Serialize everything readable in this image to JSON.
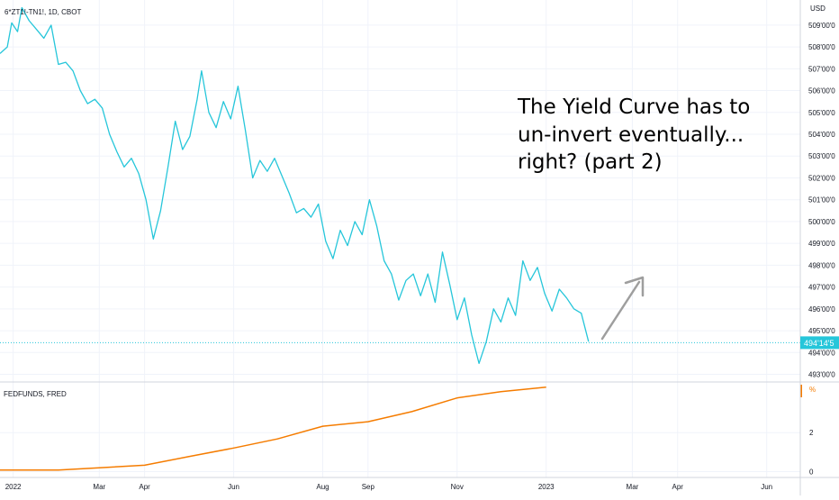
{
  "chart_data": [
    {
      "type": "line",
      "legend": "6*ZT1!-TN1!, 1D, CBOT",
      "currency": "USD",
      "color": "#26c6da",
      "ylim": [
        492.65,
        510.15
      ],
      "y_ticks": [
        "509'00'0",
        "508'00'0",
        "507'00'0",
        "506'00'0",
        "505'00'0",
        "504'00'0",
        "503'00'0",
        "502'00'0",
        "501'00'0",
        "500'00'0",
        "499'00'0",
        "498'00'0",
        "497'00'0",
        "496'00'0",
        "495'00'0",
        "494'00'0",
        "493'00'0"
      ],
      "y_tick_values": [
        509,
        508,
        507,
        506,
        505,
        504,
        503,
        502,
        501,
        500,
        499,
        498,
        497,
        496,
        495,
        494,
        493
      ],
      "last_price_label": "494'14'5",
      "last_price": 494.45,
      "x_start": "2021-12-23",
      "x_end": "2023-06-24",
      "points": [
        [
          "2021-12-23",
          507.7
        ],
        [
          "2021-12-28",
          508.0
        ],
        [
          "2021-12-31",
          509.1
        ],
        [
          "2022-01-04",
          508.7
        ],
        [
          "2022-01-07",
          509.8
        ],
        [
          "2022-01-12",
          509.2
        ],
        [
          "2022-01-17",
          508.8
        ],
        [
          "2022-01-22",
          508.4
        ],
        [
          "2022-01-27",
          509.0
        ],
        [
          "2022-02-01",
          507.2
        ],
        [
          "2022-02-06",
          507.3
        ],
        [
          "2022-02-11",
          506.9
        ],
        [
          "2022-02-16",
          506.0
        ],
        [
          "2022-02-21",
          505.4
        ],
        [
          "2022-02-26",
          505.6
        ],
        [
          "2022-03-03",
          505.2
        ],
        [
          "2022-03-08",
          504.0
        ],
        [
          "2022-03-13",
          503.2
        ],
        [
          "2022-03-18",
          502.5
        ],
        [
          "2022-03-23",
          502.9
        ],
        [
          "2022-03-28",
          502.2
        ],
        [
          "2022-04-02",
          501.0
        ],
        [
          "2022-04-07",
          499.2
        ],
        [
          "2022-04-12",
          500.5
        ],
        [
          "2022-04-17",
          502.5
        ],
        [
          "2022-04-22",
          504.6
        ],
        [
          "2022-04-27",
          503.3
        ],
        [
          "2022-05-02",
          503.9
        ],
        [
          "2022-05-07",
          505.6
        ],
        [
          "2022-05-10",
          506.9
        ],
        [
          "2022-05-15",
          505.0
        ],
        [
          "2022-05-20",
          504.3
        ],
        [
          "2022-05-25",
          505.5
        ],
        [
          "2022-05-30",
          504.7
        ],
        [
          "2022-06-04",
          506.2
        ],
        [
          "2022-06-09",
          504.2
        ],
        [
          "2022-06-14",
          502.0
        ],
        [
          "2022-06-19",
          502.8
        ],
        [
          "2022-06-24",
          502.3
        ],
        [
          "2022-06-29",
          502.9
        ],
        [
          "2022-07-04",
          502.1
        ],
        [
          "2022-07-09",
          501.3
        ],
        [
          "2022-07-14",
          500.4
        ],
        [
          "2022-07-19",
          500.6
        ],
        [
          "2022-07-24",
          500.2
        ],
        [
          "2022-07-29",
          500.8
        ],
        [
          "2022-08-03",
          499.1
        ],
        [
          "2022-08-08",
          498.3
        ],
        [
          "2022-08-13",
          499.6
        ],
        [
          "2022-08-18",
          498.9
        ],
        [
          "2022-08-23",
          500.0
        ],
        [
          "2022-08-28",
          499.4
        ],
        [
          "2022-09-02",
          501.0
        ],
        [
          "2022-09-07",
          499.8
        ],
        [
          "2022-09-12",
          498.2
        ],
        [
          "2022-09-17",
          497.6
        ],
        [
          "2022-09-22",
          496.4
        ],
        [
          "2022-09-27",
          497.3
        ],
        [
          "2022-10-02",
          497.6
        ],
        [
          "2022-10-07",
          496.6
        ],
        [
          "2022-10-12",
          497.6
        ],
        [
          "2022-10-17",
          496.3
        ],
        [
          "2022-10-22",
          498.6
        ],
        [
          "2022-10-27",
          497.1
        ],
        [
          "2022-11-01",
          495.5
        ],
        [
          "2022-11-06",
          496.5
        ],
        [
          "2022-11-11",
          494.8
        ],
        [
          "2022-11-16",
          493.5
        ],
        [
          "2022-11-21",
          494.5
        ],
        [
          "2022-11-26",
          496.0
        ],
        [
          "2022-12-01",
          495.4
        ],
        [
          "2022-12-06",
          496.5
        ],
        [
          "2022-12-11",
          495.7
        ],
        [
          "2022-12-16",
          498.2
        ],
        [
          "2022-12-21",
          497.3
        ],
        [
          "2022-12-26",
          497.9
        ],
        [
          "2022-12-31",
          496.7
        ],
        [
          "2023-01-05",
          495.9
        ],
        [
          "2023-01-10",
          496.9
        ],
        [
          "2023-01-15",
          496.5
        ],
        [
          "2023-01-20",
          496.0
        ],
        [
          "2023-01-25",
          495.8
        ],
        [
          "2023-01-30",
          494.5
        ]
      ]
    },
    {
      "type": "line",
      "legend": "FEDFUNDS, FRED",
      "color": "#f57c00",
      "axis_unit": "%",
      "ylim": [
        -0.3,
        4.6
      ],
      "y_ticks": [
        "2",
        "0"
      ],
      "y_tick_values": [
        2,
        0
      ],
      "points": [
        [
          "2021-12-01",
          0.08
        ],
        [
          "2022-01-01",
          0.08
        ],
        [
          "2022-02-01",
          0.08
        ],
        [
          "2022-03-01",
          0.2
        ],
        [
          "2022-04-01",
          0.33
        ],
        [
          "2022-05-01",
          0.77
        ],
        [
          "2022-06-01",
          1.21
        ],
        [
          "2022-07-01",
          1.68
        ],
        [
          "2022-08-01",
          2.33
        ],
        [
          "2022-09-01",
          2.56
        ],
        [
          "2022-10-01",
          3.08
        ],
        [
          "2022-11-01",
          3.78
        ],
        [
          "2022-12-01",
          4.1
        ],
        [
          "2023-01-01",
          4.33
        ]
      ]
    }
  ],
  "x_ticks": [
    {
      "label": "2022",
      "date": "2022-01-01"
    },
    {
      "label": "Mar",
      "date": "2022-03-01"
    },
    {
      "label": "Apr",
      "date": "2022-04-01"
    },
    {
      "label": "Jun",
      "date": "2022-06-01"
    },
    {
      "label": "Aug",
      "date": "2022-08-01"
    },
    {
      "label": "Sep",
      "date": "2022-09-01"
    },
    {
      "label": "Nov",
      "date": "2022-11-01"
    },
    {
      "label": "2023",
      "date": "2023-01-01"
    },
    {
      "label": "Mar",
      "date": "2023-03-01"
    },
    {
      "label": "Apr",
      "date": "2023-04-01"
    },
    {
      "label": "Jun",
      "date": "2023-06-01"
    }
  ],
  "annotation": {
    "lines": [
      "The Yield Curve has to",
      "un-invert eventually...",
      "right? (part 2)"
    ],
    "arrow_color": "#9e9e9e",
    "arrow_direction": "up-right"
  }
}
